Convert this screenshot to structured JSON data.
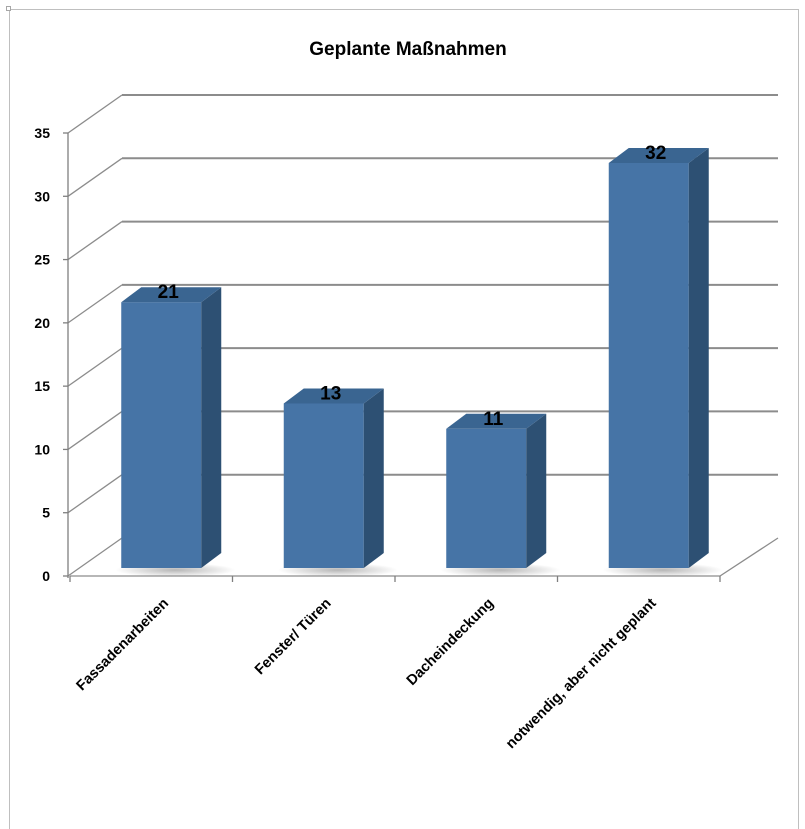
{
  "chart_data": {
    "type": "bar",
    "title": "Geplante Maßnahmen",
    "categories": [
      "Fassadenarbeiten",
      "Fenster/ Türen",
      "Dacheindeckung",
      "notwendig, aber nicht geplant"
    ],
    "values": [
      21,
      13,
      11,
      32
    ],
    "data_labels": [
      "21",
      "13",
      "11",
      "32"
    ],
    "yticks": [
      "0",
      "5",
      "10",
      "15",
      "20",
      "25",
      "30",
      "35"
    ],
    "ylim": [
      0,
      35
    ],
    "xlabel": "",
    "ylabel": "",
    "grid": true,
    "legend": "none",
    "style": "3d-column",
    "colors": {
      "bar_front": "#4674a6",
      "bar_side": "#2d5073",
      "bar_top": "#3a6591",
      "grid": "#8c8c8c"
    }
  }
}
